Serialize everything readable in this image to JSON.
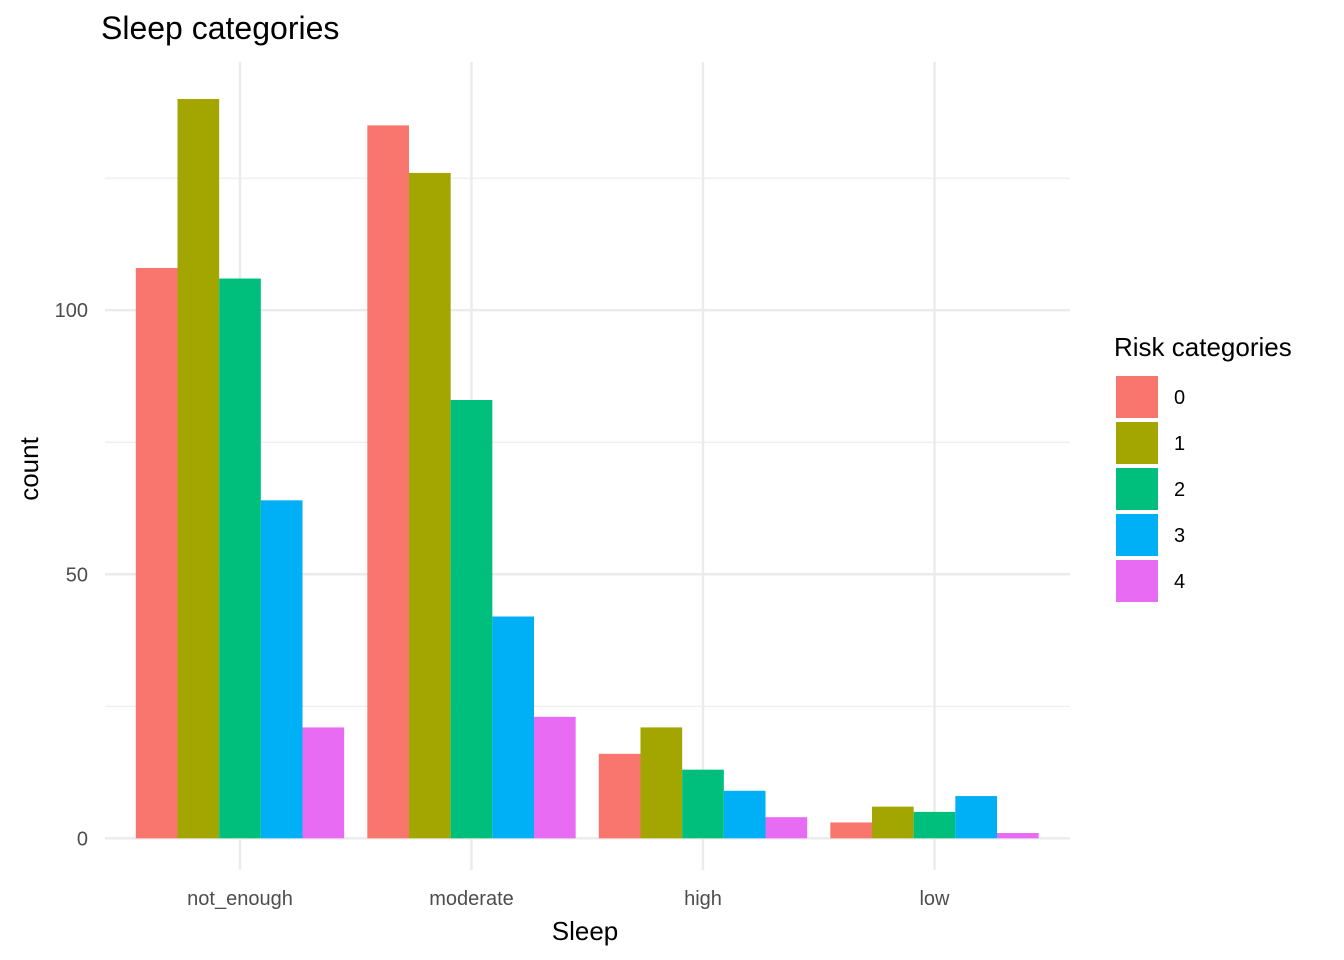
{
  "chart_data": {
    "type": "bar",
    "title": "Sleep categories",
    "xlabel": "Sleep",
    "ylabel": "count",
    "categories": [
      "not_enough",
      "moderate",
      "high",
      "low"
    ],
    "series": [
      {
        "name": "0",
        "color": "#F8766D",
        "values": [
          108,
          135,
          16,
          3
        ]
      },
      {
        "name": "1",
        "color": "#A3A500",
        "values": [
          140,
          126,
          21,
          6
        ]
      },
      {
        "name": "2",
        "color": "#00BF7D",
        "values": [
          106,
          83,
          13,
          5
        ]
      },
      {
        "name": "3",
        "color": "#00B0F6",
        "values": [
          64,
          42,
          9,
          8
        ]
      },
      {
        "name": "4",
        "color": "#E76BF3",
        "values": [
          21,
          23,
          4,
          1
        ]
      }
    ],
    "ylim": [
      -6,
      147
    ],
    "y_ticks": [
      0,
      50,
      100
    ],
    "y_minor_ticks": [
      25,
      75,
      125
    ],
    "grid": true,
    "legend_title": "Risk categories",
    "legend_position": "right"
  }
}
